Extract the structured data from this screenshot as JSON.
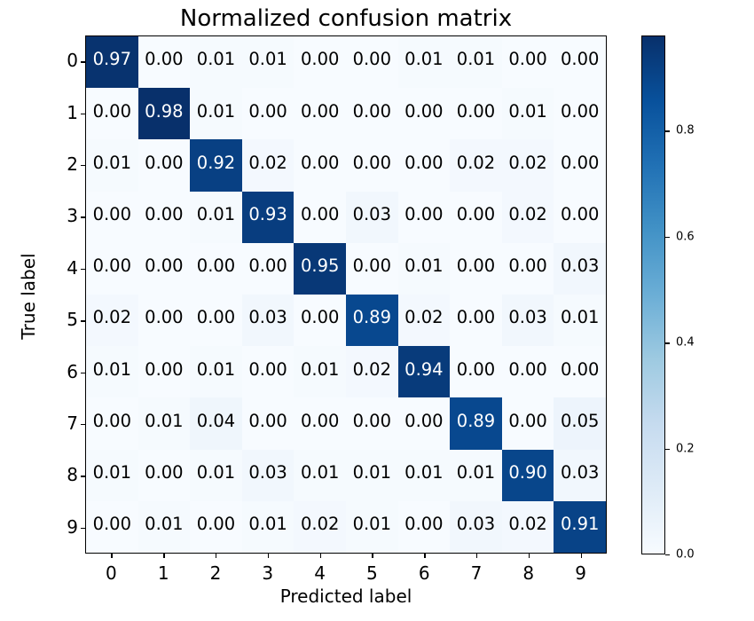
{
  "chart_data": {
    "type": "heatmap",
    "title": "Normalized confusion matrix",
    "xlabel": "Predicted label",
    "ylabel": "True label",
    "x_tick_labels": [
      "0",
      "1",
      "2",
      "3",
      "4",
      "5",
      "6",
      "7",
      "8",
      "9"
    ],
    "y_tick_labels": [
      "0",
      "1",
      "2",
      "3",
      "4",
      "5",
      "6",
      "7",
      "8",
      "9"
    ],
    "matrix": [
      [
        0.97,
        0.0,
        0.01,
        0.01,
        0.0,
        0.0,
        0.01,
        0.01,
        0.0,
        0.0
      ],
      [
        0.0,
        0.98,
        0.01,
        0.0,
        0.0,
        0.0,
        0.0,
        0.0,
        0.01,
        0.0
      ],
      [
        0.01,
        0.0,
        0.92,
        0.02,
        0.0,
        0.0,
        0.0,
        0.02,
        0.02,
        0.0
      ],
      [
        0.0,
        0.0,
        0.01,
        0.93,
        0.0,
        0.03,
        0.0,
        0.0,
        0.02,
        0.0
      ],
      [
        0.0,
        0.0,
        0.0,
        0.0,
        0.95,
        0.0,
        0.01,
        0.0,
        0.0,
        0.03
      ],
      [
        0.02,
        0.0,
        0.0,
        0.03,
        0.0,
        0.89,
        0.02,
        0.0,
        0.03,
        0.01
      ],
      [
        0.01,
        0.0,
        0.01,
        0.0,
        0.01,
        0.02,
        0.94,
        0.0,
        0.0,
        0.0
      ],
      [
        0.0,
        0.01,
        0.04,
        0.0,
        0.0,
        0.0,
        0.0,
        0.89,
        0.0,
        0.05
      ],
      [
        0.01,
        0.0,
        0.01,
        0.03,
        0.01,
        0.01,
        0.01,
        0.01,
        0.9,
        0.03
      ],
      [
        0.0,
        0.01,
        0.0,
        0.01,
        0.02,
        0.01,
        0.0,
        0.03,
        0.02,
        0.91
      ]
    ],
    "value_format_decimals": 2,
    "vmin": 0.0,
    "vmax": 0.98,
    "text_threshold": 0.49,
    "colormap_name": "Blues",
    "colormap_stops": [
      {
        "pos": 0.0,
        "color": "#f7fbff"
      },
      {
        "pos": 0.125,
        "color": "#deebf7"
      },
      {
        "pos": 0.25,
        "color": "#c6dbef"
      },
      {
        "pos": 0.375,
        "color": "#9ecae1"
      },
      {
        "pos": 0.5,
        "color": "#6baed6"
      },
      {
        "pos": 0.625,
        "color": "#4292c6"
      },
      {
        "pos": 0.75,
        "color": "#2171b5"
      },
      {
        "pos": 0.875,
        "color": "#08519c"
      },
      {
        "pos": 1.0,
        "color": "#08306b"
      }
    ],
    "cell_text_color_light": "#ffffff",
    "cell_text_color_dark": "#000000",
    "colorbar_ticks": [
      0.0,
      0.2,
      0.4,
      0.6,
      0.8
    ],
    "colorbar_tick_decimals": 1,
    "legend_position": "right",
    "grid": false
  }
}
